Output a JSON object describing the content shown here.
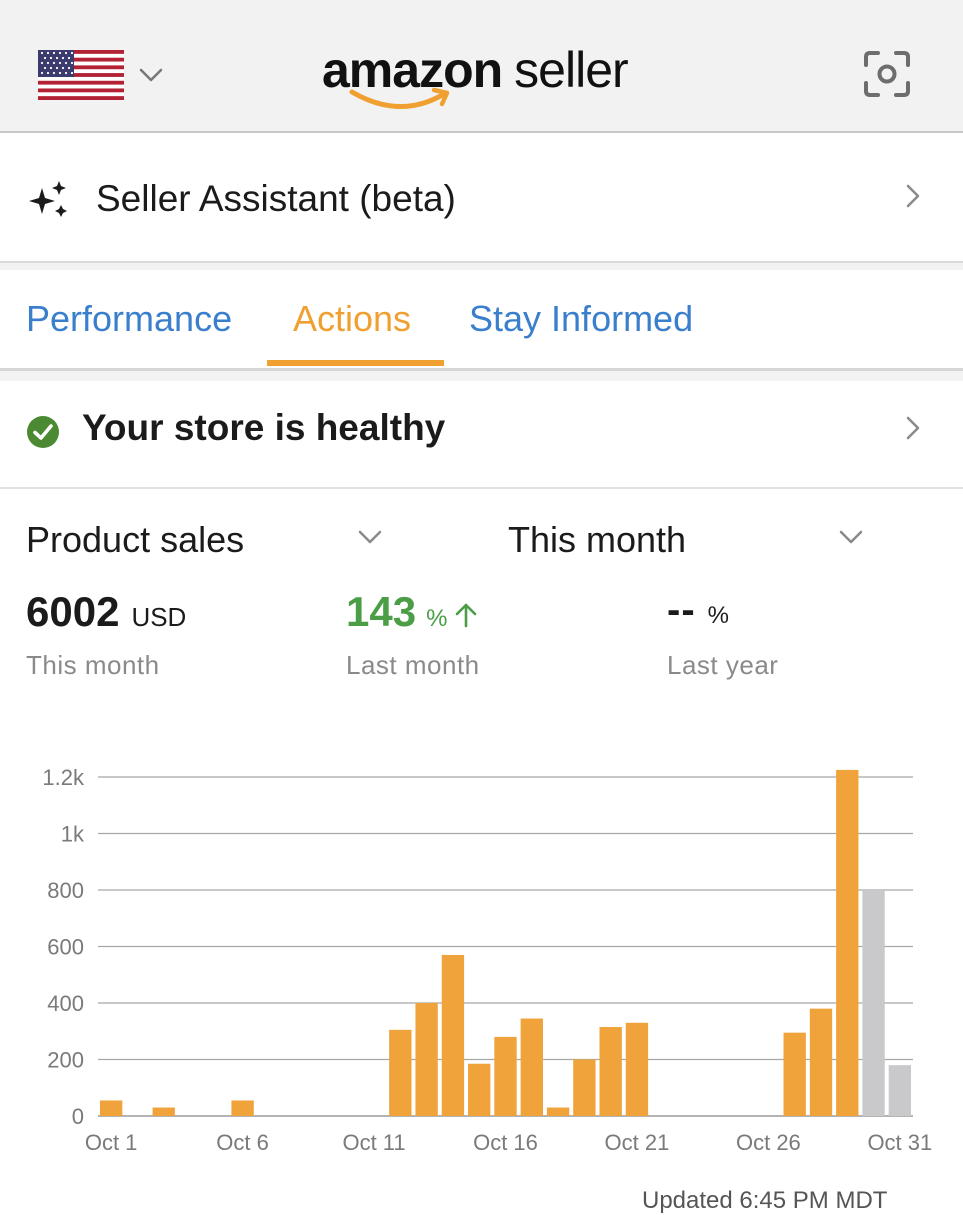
{
  "header": {
    "country_icon": "us-flag-icon",
    "logo_brand": "amazon",
    "logo_product": "seller",
    "scan_icon": "camera-scan-icon"
  },
  "assistant": {
    "label": "Seller Assistant (beta)",
    "icon": "sparkle-icon"
  },
  "tabs": [
    {
      "label": "Performance",
      "active": false
    },
    {
      "label": "Actions",
      "active": true
    },
    {
      "label": "Stay Informed",
      "active": false
    }
  ],
  "health": {
    "label": "Your store is healthy",
    "status_color": "#4b8a32"
  },
  "selectors": {
    "metric": "Product sales",
    "period": "This month"
  },
  "stats": {
    "current": {
      "value": "6002",
      "unit": "USD",
      "label": "This month"
    },
    "vs_last_month": {
      "value": "143",
      "unit": "%",
      "label": "Last month",
      "trend": "up",
      "color": "#4b9d46"
    },
    "vs_last_year": {
      "value": "--",
      "unit": "%",
      "label": "Last year"
    }
  },
  "chart_data": {
    "type": "bar",
    "ylim": [
      0,
      1200
    ],
    "y_ticks": [
      0,
      200,
      400,
      600,
      800,
      1000,
      1200
    ],
    "y_tick_labels": [
      "0",
      "200",
      "400",
      "600",
      "800",
      "1k",
      "1.2k"
    ],
    "x_tick_labels": [
      {
        "day": 1,
        "label": "Oct 1"
      },
      {
        "day": 6,
        "label": "Oct 6"
      },
      {
        "day": 11,
        "label": "Oct 11"
      },
      {
        "day": 16,
        "label": "Oct 16"
      },
      {
        "day": 21,
        "label": "Oct 21"
      },
      {
        "day": 26,
        "label": "Oct 26"
      },
      {
        "day": 31,
        "label": "Oct 31"
      }
    ],
    "categories": [
      1,
      2,
      3,
      4,
      5,
      6,
      7,
      8,
      9,
      10,
      11,
      12,
      13,
      14,
      15,
      16,
      17,
      18,
      19,
      20,
      21,
      22,
      23,
      24,
      25,
      26,
      27,
      28,
      29,
      30,
      31
    ],
    "values": [
      55,
      0,
      30,
      0,
      0,
      55,
      0,
      0,
      0,
      0,
      0,
      305,
      400,
      570,
      185,
      280,
      345,
      30,
      200,
      315,
      330,
      0,
      0,
      0,
      0,
      0,
      295,
      380,
      1225,
      800,
      180
    ],
    "bar_colors": {
      "actual": "#f0a33a",
      "projected": "#c9c9cc"
    },
    "projected_days": [
      30,
      31
    ],
    "grid": true
  },
  "footer": {
    "updated_text": "Updated 6:45 PM MDT"
  }
}
